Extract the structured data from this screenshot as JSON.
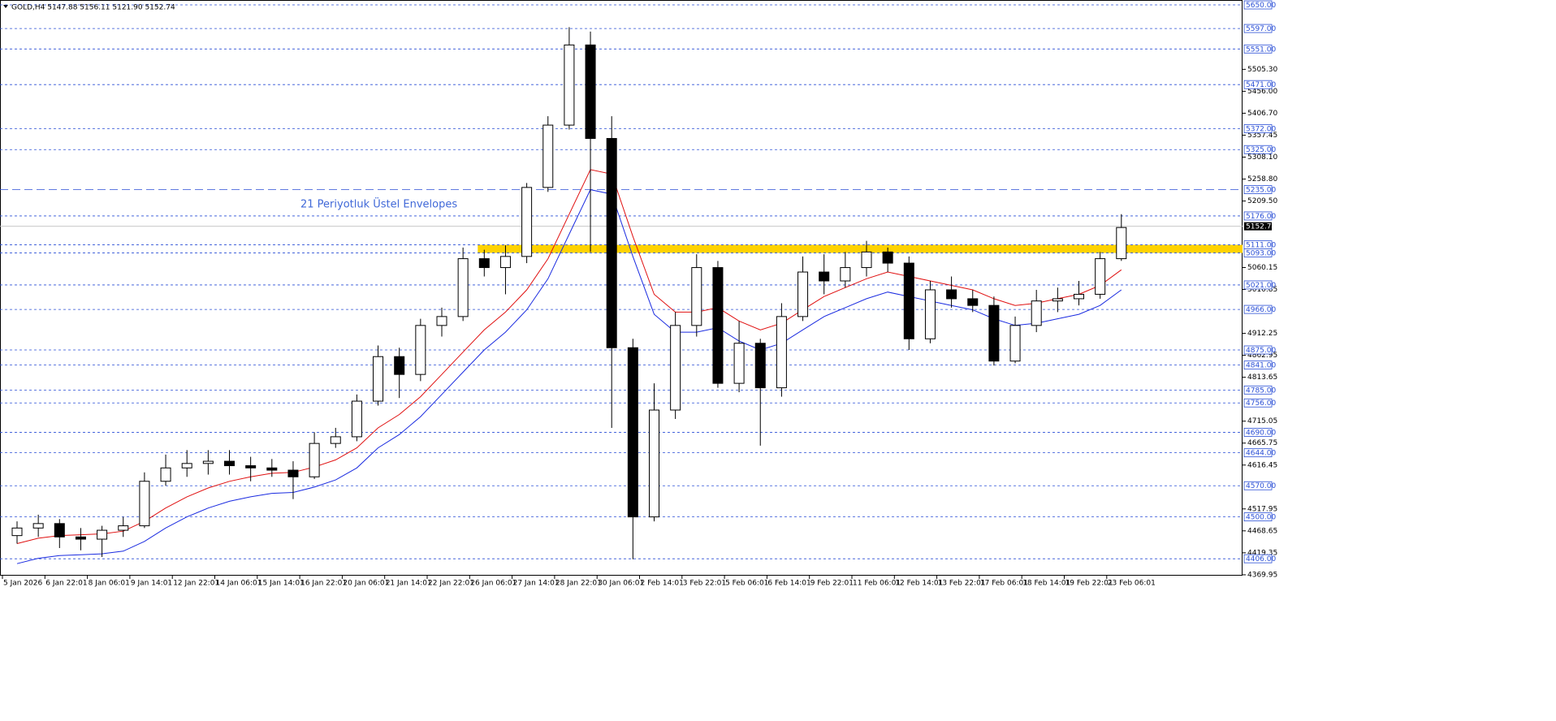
{
  "chart_data": {
    "type": "candlestick",
    "subtitle": "GOLD,H4  5147.88 5156.11 5121.90 5152.74",
    "annotation": "21 Periyotluk Üstel Envelopes",
    "annotation_color": "#4169d8",
    "categories": [
      "5 Jan 2026",
      null,
      "6 Jan 22:01",
      null,
      "8 Jan 06:01",
      null,
      "9 Jan 14:01",
      null,
      "12 Jan 22:01",
      null,
      "14 Jan 06:01",
      null,
      "15 Jan 14:01",
      null,
      "16 Jan 22:01",
      null,
      "20 Jan 06:01",
      null,
      "21 Jan 14:01",
      null,
      "22 Jan 22:01",
      null,
      "26 Jan 06:01",
      null,
      "27 Jan 14:01",
      null,
      "28 Jan 22:01",
      null,
      "30 Jan 06:01",
      null,
      "2 Feb 14:01",
      null,
      "3 Feb 22:01",
      null,
      "5 Feb 06:01",
      null,
      "6 Feb 14:01",
      null,
      "9 Feb 22:01",
      null,
      "11 Feb 06:01",
      null,
      "12 Feb 14:01",
      null,
      "13 Feb 22:01",
      null,
      "17 Feb 06:01",
      null,
      "18 Feb 14:01",
      null,
      "19 Feb 22:01",
      null,
      "23 Feb 06:01"
    ],
    "open": [
      4458,
      4475,
      4485,
      4455,
      4450,
      4470,
      4480,
      4580,
      4610,
      4620,
      4625,
      4615,
      4610,
      4605,
      4590,
      4665,
      4680,
      4760,
      4860,
      4820,
      4930,
      4950,
      5080,
      5060,
      5085,
      5240,
      5380,
      5560,
      5350,
      4880,
      4500,
      4740,
      4930,
      5060,
      4800,
      4890,
      4790,
      4950,
      5050,
      5030,
      5060,
      5095,
      5070,
      4900,
      5010,
      4990,
      4975,
      4850,
      4930,
      4985,
      4990,
      5000,
      5080
    ],
    "high": [
      4490,
      4505,
      4495,
      4475,
      4480,
      4500,
      4600,
      4640,
      4650,
      4650,
      4650,
      4635,
      4630,
      4625,
      4690,
      4700,
      4775,
      4885,
      4880,
      4945,
      4970,
      5105,
      5100,
      5110,
      5250,
      5400,
      5600,
      5590,
      5400,
      4900,
      4800,
      4960,
      5090,
      5075,
      4940,
      4900,
      4980,
      5085,
      5090,
      5095,
      5120,
      5105,
      5085,
      5030,
      5040,
      5010,
      4995,
      4950,
      5010,
      5015,
      5030,
      5095,
      5180
    ],
    "low": [
      4440,
      4455,
      4430,
      4425,
      4410,
      4455,
      4475,
      4570,
      4590,
      4595,
      4595,
      4580,
      4590,
      4540,
      4585,
      4655,
      4670,
      4750,
      4767,
      4805,
      4905,
      4940,
      5040,
      5000,
      5070,
      5230,
      5370,
      5095,
      4700,
      4405,
      4490,
      4720,
      4905,
      4790,
      4780,
      4660,
      4770,
      4940,
      5000,
      5015,
      5040,
      5050,
      4875,
      4890,
      4970,
      4960,
      4840,
      4845,
      4915,
      4960,
      4975,
      4990,
      5075
    ],
    "close": [
      4475,
      4485,
      4455,
      4450,
      4470,
      4480,
      4580,
      4610,
      4620,
      4625,
      4615,
      4610,
      4605,
      4590,
      4665,
      4680,
      4760,
      4860,
      4820,
      4930,
      4950,
      5080,
      5060,
      5085,
      5240,
      5380,
      5560,
      5350,
      4880,
      4500,
      4740,
      4930,
      5060,
      4800,
      4890,
      4790,
      4950,
      5050,
      5030,
      5060,
      5095,
      5070,
      4900,
      5010,
      4990,
      4975,
      4850,
      4930,
      4985,
      4990,
      5000,
      5080,
      5150
    ],
    "up_color": "#ffffff",
    "down_color": "#000000",
    "overlays": [
      {
        "color": "#e01010",
        "values": [
          4440,
          4452,
          4458,
          4460,
          4462,
          4468,
          4490,
          4520,
          4545,
          4565,
          4580,
          4590,
          4598,
          4600,
          4612,
          4628,
          4655,
          4700,
          4730,
          4770,
          4820,
          4870,
          4920,
          4960,
          5010,
          5080,
          5180,
          5280,
          5270,
          5130,
          5000,
          4960,
          4960,
          4970,
          4940,
          4920,
          4935,
          4965,
          4995,
          5015,
          5035,
          5050,
          5040,
          5030,
          5020,
          5010,
          4990,
          4975,
          4980,
          4990,
          5000,
          5020,
          5055
        ]
      },
      {
        "color": "#1a2be0",
        "values": [
          4395,
          4407,
          4413,
          4415,
          4417,
          4423,
          4445,
          4475,
          4500,
          4520,
          4535,
          4545,
          4553,
          4555,
          4567,
          4583,
          4610,
          4655,
          4685,
          4725,
          4775,
          4825,
          4875,
          4915,
          4965,
          5035,
          5135,
          5235,
          5225,
          5085,
          4955,
          4915,
          4915,
          4925,
          4895,
          4875,
          4890,
          4920,
          4950,
          4970,
          4990,
          5005,
          4995,
          4985,
          4975,
          4965,
          4945,
          4930,
          4935,
          4945,
          4955,
          4975,
          5010
        ]
      }
    ],
    "ylim": [
      4368,
      5661
    ],
    "yticks": [
      {
        "value": 5505.3,
        "label": "5505.30"
      },
      {
        "value": 5456.0,
        "label": "5456.00"
      },
      {
        "value": 5406.7,
        "label": "5406.70"
      },
      {
        "value": 5357.45,
        "label": "5357.45"
      },
      {
        "value": 5308.1,
        "label": "5308.10"
      },
      {
        "value": 5258.8,
        "label": "5258.80"
      },
      {
        "value": 5209.5,
        "label": "5209.50"
      },
      {
        "value": 5060.15,
        "label": "5060.15"
      },
      {
        "value": 5010.85,
        "label": "5010.85"
      },
      {
        "value": 4912.25,
        "label": "4912.25"
      },
      {
        "value": 4862.95,
        "label": "4862.95"
      },
      {
        "value": 4813.65,
        "label": "4813.65"
      },
      {
        "value": 4715.05,
        "label": "4715.05"
      },
      {
        "value": 4665.75,
        "label": "4665.75"
      },
      {
        "value": 4616.45,
        "label": "4616.45"
      },
      {
        "value": 4517.95,
        "label": "4517.95"
      },
      {
        "value": 4468.65,
        "label": "4468.65"
      },
      {
        "value": 4419.35,
        "label": "4419.35"
      },
      {
        "value": 4369.95,
        "label": "4369.95"
      }
    ],
    "levels": [
      {
        "value": 5650,
        "label": "5650.00"
      },
      {
        "value": 5597,
        "label": "5597.00"
      },
      {
        "value": 5551,
        "label": "5551.00"
      },
      {
        "value": 5471,
        "label": "5471.00"
      },
      {
        "value": 5372,
        "label": "5372.00"
      },
      {
        "value": 5325,
        "label": "5325.00"
      },
      {
        "value": 5235,
        "label": "5235.00"
      },
      {
        "value": 5176,
        "label": "5176.00"
      },
      {
        "value": 5111,
        "label": "5111.00"
      },
      {
        "value": 5093,
        "label": "5093.00"
      },
      {
        "value": 5021,
        "label": "5021.00"
      },
      {
        "value": 4966,
        "label": "4966.00"
      },
      {
        "value": 4875,
        "label": "4875.00"
      },
      {
        "value": 4841,
        "label": "4841.00"
      },
      {
        "value": 4785,
        "label": "4785.00"
      },
      {
        "value": 4756,
        "label": "4756.00"
      },
      {
        "value": 4690,
        "label": "4690.00"
      },
      {
        "value": 4644,
        "label": "4644.00"
      },
      {
        "value": 4570,
        "label": "4570.00"
      },
      {
        "value": 4500,
        "label": "4500.00"
      },
      {
        "value": 4406,
        "label": "4406.00"
      }
    ],
    "level_color": "#2a4fd6",
    "zone": [
      5093,
      5111
    ],
    "zone_color": "#ffd200",
    "current_price": {
      "value": 5152.74,
      "label": "5152.74"
    }
  }
}
